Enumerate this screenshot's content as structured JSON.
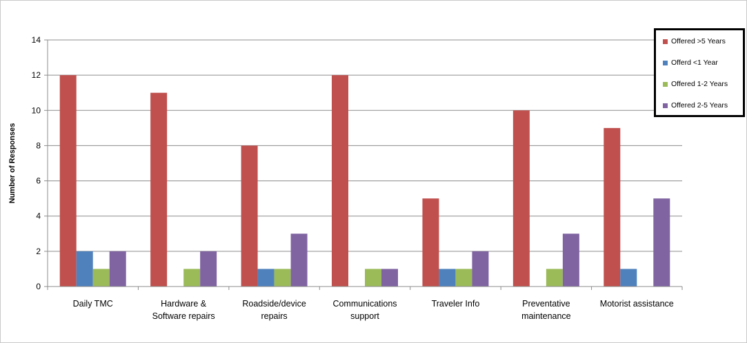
{
  "chart_data": {
    "type": "bar",
    "ylabel": "Number of Responses",
    "xlabel": "",
    "ylim": [
      0,
      14
    ],
    "yticks": [
      0,
      2,
      4,
      6,
      8,
      10,
      12,
      14
    ],
    "grid": true,
    "legend_position": "top-right",
    "categories": [
      [
        "Daily TMC"
      ],
      [
        "Hardware &",
        "Software repairs"
      ],
      [
        "Roadside/device",
        "repairs"
      ],
      [
        "Communications",
        "support"
      ],
      [
        "Traveler Info"
      ],
      [
        "Preventative",
        "maintenance"
      ],
      [
        "Motorist assistance"
      ]
    ],
    "series": [
      {
        "name": "Offered >5 Years",
        "color": "#c0504d",
        "values": [
          12,
          11,
          8,
          12,
          5,
          10,
          9
        ]
      },
      {
        "name": "Offerd <1 Year",
        "color": "#4f81bd",
        "values": [
          2,
          0,
          1,
          0,
          1,
          0,
          1
        ]
      },
      {
        "name": "Offered 1-2 Years",
        "color": "#9bbb59",
        "values": [
          1,
          1,
          1,
          1,
          1,
          1,
          0
        ]
      },
      {
        "name": "Offered 2-5 Years",
        "color": "#8064a2",
        "values": [
          2,
          2,
          3,
          1,
          2,
          3,
          5
        ]
      }
    ]
  }
}
